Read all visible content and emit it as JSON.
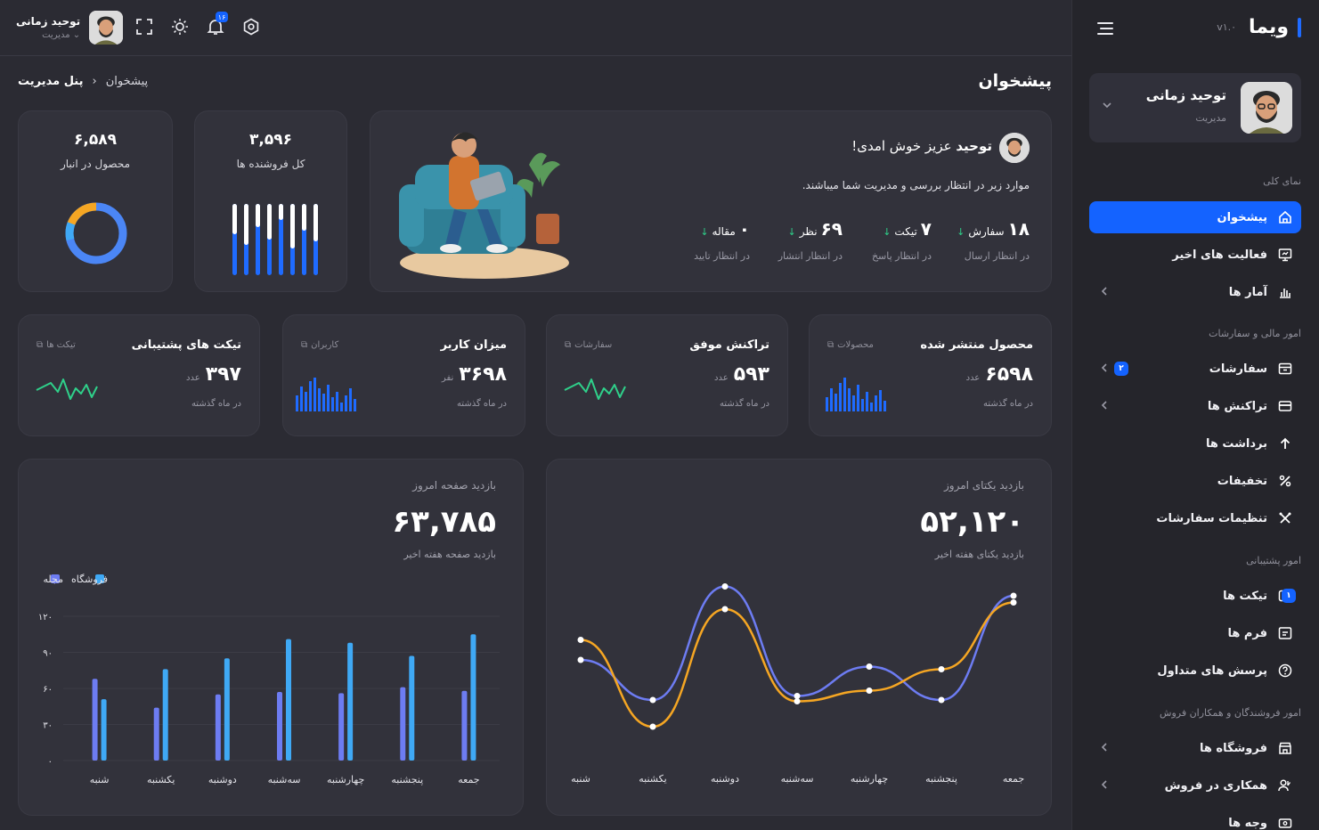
{
  "brand": {
    "name": "ویما",
    "version": "v۱.۰"
  },
  "user": {
    "name": "توحید زمانی",
    "role": "مدیریت"
  },
  "topbar": {
    "notifications": "۱۶"
  },
  "sidebar": {
    "sections": [
      "نمای کلی",
      "امور مالی و سفارشات",
      "امور پشتیبانی",
      "امور فروشندگان و همکاران فروش"
    ],
    "items": [
      {
        "label": "پیشخوان",
        "icon": "home-icon"
      },
      {
        "label": "فعالیت های اخیر",
        "icon": "monitor-icon"
      },
      {
        "label": "آمار ها",
        "icon": "bar-chart-icon"
      },
      {
        "label": "سفارشات",
        "icon": "box-icon",
        "badge": "۲"
      },
      {
        "label": "تراکنش ها",
        "icon": "card-icon"
      },
      {
        "label": "برداشت ها",
        "icon": "arrow-up-icon"
      },
      {
        "label": "تخفیفات",
        "icon": "percent-icon"
      },
      {
        "label": "تنظیمات سفارشات",
        "icon": "tools-icon"
      },
      {
        "label": "تیکت ها",
        "icon": "ticket-icon",
        "badge": "۱"
      },
      {
        "label": "فرم ها",
        "icon": "form-icon"
      },
      {
        "label": "پرسش های متداول",
        "icon": "question-icon"
      },
      {
        "label": "فروشگاه ها",
        "icon": "store-icon"
      },
      {
        "label": "همکاری در فروش",
        "icon": "users-icon"
      },
      {
        "label": "وجه ها",
        "icon": "money-icon"
      }
    ]
  },
  "page": {
    "title": "پیشخوان",
    "breadcrumb": [
      "پنل مدیریت",
      "پیشخوان"
    ]
  },
  "stats": [
    {
      "value": "۶,۵۸۹",
      "label": "محصول در انبار"
    },
    {
      "value": "۳,۵۹۶",
      "label": "کل فروشنده ها"
    }
  ],
  "welcome": {
    "name": "توحید",
    "greeting": " عزیز خوش امدی!",
    "subtitle": "موارد زیر در انتظار بررسی و مدیریت شما میباشند.",
    "pending": [
      {
        "num": "۱۸",
        "unit": "سفارش",
        "status": "در انتظار ارسال"
      },
      {
        "num": "۷",
        "unit": "تیکت",
        "status": "در انتظار پاسخ"
      },
      {
        "num": "۶۹",
        "unit": "نظر",
        "status": "در انتظار انتشار"
      },
      {
        "num": "۰",
        "unit": "مقاله",
        "status": "در انتظار تایید"
      }
    ]
  },
  "kpis": [
    {
      "title": "محصول منتشر شده",
      "link": "محصولات",
      "value": "۶۵۹۸",
      "unit": "عدد",
      "sub": "در ماه گذشته"
    },
    {
      "title": "تراکنش موفق",
      "link": "سفارشات",
      "value": "۵۹۳",
      "unit": "عدد",
      "sub": "در ماه گذشته"
    },
    {
      "title": "میزان کاربر",
      "link": "کاربران",
      "value": "۳۶۹۸",
      "unit": "نفر",
      "sub": "در ماه گذشته"
    },
    {
      "title": "تیکت های پشتیبانی",
      "link": "تیکت ها",
      "value": "۳۹۷",
      "unit": "عدد",
      "sub": "در ماه گذشته"
    }
  ],
  "colors": {
    "accent": "#1463ff",
    "blue": "#6d7cf2",
    "cyan": "#3fa9f5",
    "orange": "#f5a623",
    "green": "#2fd08a"
  },
  "chart_data": [
    {
      "type": "line",
      "title": "بازدید یکتای امروز",
      "value": "۵۲,۱۲۰",
      "caption": "بازدید یکتای هفته اخیر",
      "categories": [
        "شنبه",
        "یکشنبه",
        "دوشنبه",
        "سه‌شنبه",
        "چهارشنبه",
        "پنجشنبه",
        "جمعه"
      ],
      "series": [
        {
          "values": [
            70,
            40,
            125,
            43,
            65,
            40,
            118
          ]
        },
        {
          "values": [
            85,
            20,
            108,
            39,
            47,
            63,
            113
          ]
        }
      ],
      "ylim": [
        0,
        140
      ]
    },
    {
      "type": "bar",
      "title": "بازدید صفحه امروز",
      "value": "۶۳,۷۸۵",
      "caption": "بازدید صفحه هفته اخیر",
      "categories": [
        "شنبه",
        "یکشنبه",
        "دوشنبه",
        "سه‌شنبه",
        "چهارشنبه",
        "پنجشنبه",
        "جمعه"
      ],
      "series": [
        {
          "name": "مجله",
          "values": [
            68,
            44,
            55,
            57,
            56,
            61,
            58
          ]
        },
        {
          "name": "فروشگاه",
          "values": [
            51,
            76,
            85,
            101,
            98,
            87,
            105
          ]
        }
      ],
      "yticks": [
        "۱۲۰",
        "۹۰",
        "۶۰",
        "۳۰",
        "۰"
      ],
      "ylim": [
        0,
        120
      ]
    }
  ]
}
